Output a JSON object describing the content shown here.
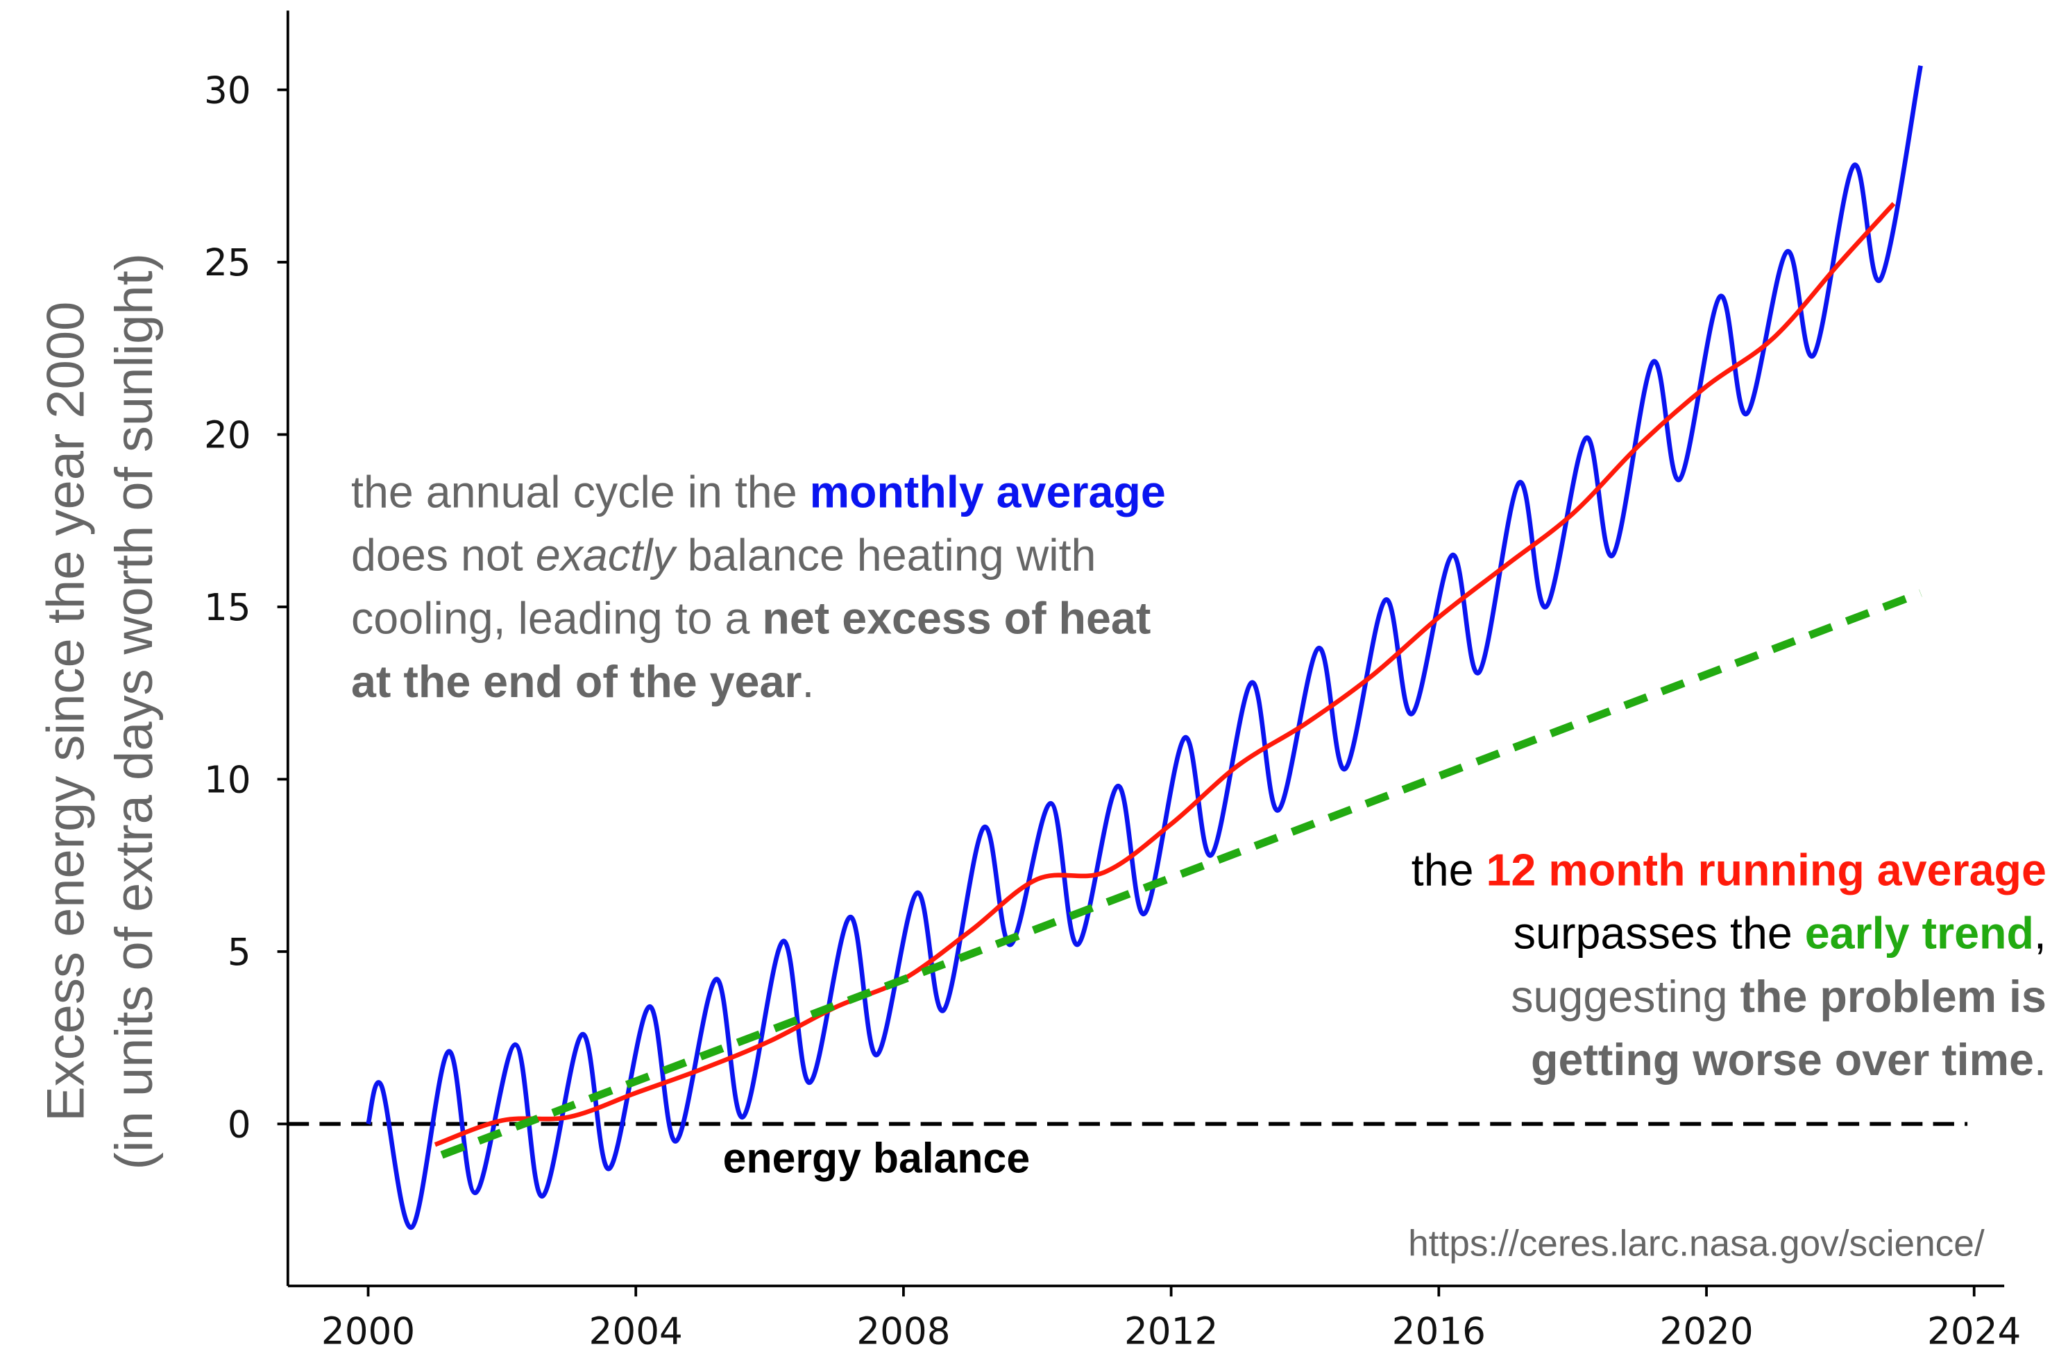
{
  "chart_data": {
    "type": "line",
    "xlim": [
      1998.8,
      2024.45
    ],
    "ylim": [
      -4.7,
      32.3
    ],
    "xticks": [
      2000,
      2004,
      2008,
      2012,
      2016,
      2020,
      2024
    ],
    "yticks": [
      0,
      5,
      10,
      15,
      20,
      25,
      30
    ],
    "ylabel": [
      "Excess energy since the year 2000",
      "(in units of extra days worth of sunlight)"
    ],
    "series": [
      {
        "color": "#0a14f0",
        "dash": false,
        "smooth": true,
        "x": [
          2000.0,
          2000.2,
          2000.65,
          2001.2,
          2001.6,
          2002.2,
          2002.6,
          2003.2,
          2003.6,
          2004.2,
          2004.6,
          2005.2,
          2005.6,
          2006.2,
          2006.6,
          2007.2,
          2007.6,
          2008.2,
          2008.6,
          2009.2,
          2009.6,
          2010.2,
          2010.6,
          2011.2,
          2011.6,
          2012.2,
          2012.6,
          2013.2,
          2013.6,
          2014.2,
          2014.6,
          2015.2,
          2015.6,
          2016.2,
          2016.6,
          2017.2,
          2017.6,
          2018.2,
          2018.6,
          2019.2,
          2019.6,
          2020.2,
          2020.6,
          2021.2,
          2021.6,
          2022.2,
          2022.6,
          2023.2
        ],
        "values": [
          0,
          1.1,
          -3.0,
          2.1,
          -2.0,
          2.3,
          -2.1,
          2.6,
          -1.3,
          3.4,
          -0.5,
          4.2,
          0.2,
          5.3,
          1.2,
          6.0,
          2.0,
          6.7,
          3.3,
          8.6,
          5.2,
          9.3,
          5.2,
          9.8,
          6.1,
          11.2,
          7.8,
          12.8,
          9.1,
          13.8,
          10.3,
          15.2,
          11.9,
          16.5,
          13.1,
          18.6,
          15.0,
          19.9,
          16.5,
          22.1,
          18.7,
          24.0,
          20.6,
          25.3,
          22.3,
          27.8,
          24.5,
          30.7
        ]
      },
      {
        "color": "#ff1a0a",
        "dash": false,
        "smooth": true,
        "x": [
          2001,
          2002,
          2003,
          2004,
          2005,
          2006,
          2007,
          2008,
          2009,
          2010,
          2011,
          2012,
          2013,
          2014,
          2015,
          2016,
          2017,
          2018,
          2019,
          2020,
          2021,
          2022,
          2022.8
        ],
        "values": [
          -0.6,
          0.1,
          0.2,
          0.9,
          1.6,
          2.4,
          3.4,
          4.2,
          5.6,
          7.1,
          7.3,
          8.7,
          10.4,
          11.6,
          13.0,
          14.7,
          16.2,
          17.7,
          19.7,
          21.4,
          22.8,
          25.0,
          26.7
        ]
      },
      {
        "color": "#22aa11",
        "dash": true,
        "smooth": false,
        "x": [
          2001.1,
          2023.2
        ],
        "values": [
          -0.9,
          15.4
        ]
      },
      {
        "color": "#000000",
        "dash": true,
        "smooth": false,
        "x": [
          1998.8,
          2023.9
        ],
        "values": [
          0,
          0
        ]
      }
    ],
    "annotations": [
      {
        "anchor": "start",
        "lines": [
          [
            {
              "text": "the annual cycle in the ",
              "color": "#666666"
            },
            {
              "text": "monthly average",
              "color": "#0a14f0",
              "bold": true
            }
          ],
          [
            {
              "text": "does not ",
              "color": "#666666"
            },
            {
              "text": "exactly",
              "color": "#666666",
              "italic": true
            },
            {
              "text": " balance heating with",
              "color": "#666666"
            }
          ],
          [
            {
              "text": "cooling, leading to a ",
              "color": "#666666"
            },
            {
              "text": "net excess of heat",
              "color": "#666666",
              "bold": true
            }
          ],
          [
            {
              "text": "at the end of the year",
              "color": "#666666",
              "bold": true
            },
            {
              "text": ".",
              "color": "#666666"
            }
          ]
        ]
      },
      {
        "anchor": "end",
        "lines": [
          [
            {
              "text": "the ",
              "color": "#000000"
            },
            {
              "text": "12 month running average",
              "color": "#ff1a0a",
              "bold": true
            }
          ],
          [
            {
              "text": "surpasses the ",
              "color": "#000000"
            },
            {
              "text": "early trend",
              "color": "#22aa11",
              "bold": true
            },
            {
              "text": ",",
              "color": "#000000"
            }
          ],
          [
            {
              "text": "suggesting ",
              "color": "#666666"
            },
            {
              "text": "the problem is",
              "color": "#666666",
              "bold": true
            }
          ],
          [
            {
              "text": "getting worse over time",
              "color": "#666666",
              "bold": true
            },
            {
              "text": ".",
              "color": "#666666"
            }
          ]
        ]
      }
    ],
    "label_balance": "energy balance",
    "source": "https://ceres.larc.nasa.gov/science/"
  }
}
